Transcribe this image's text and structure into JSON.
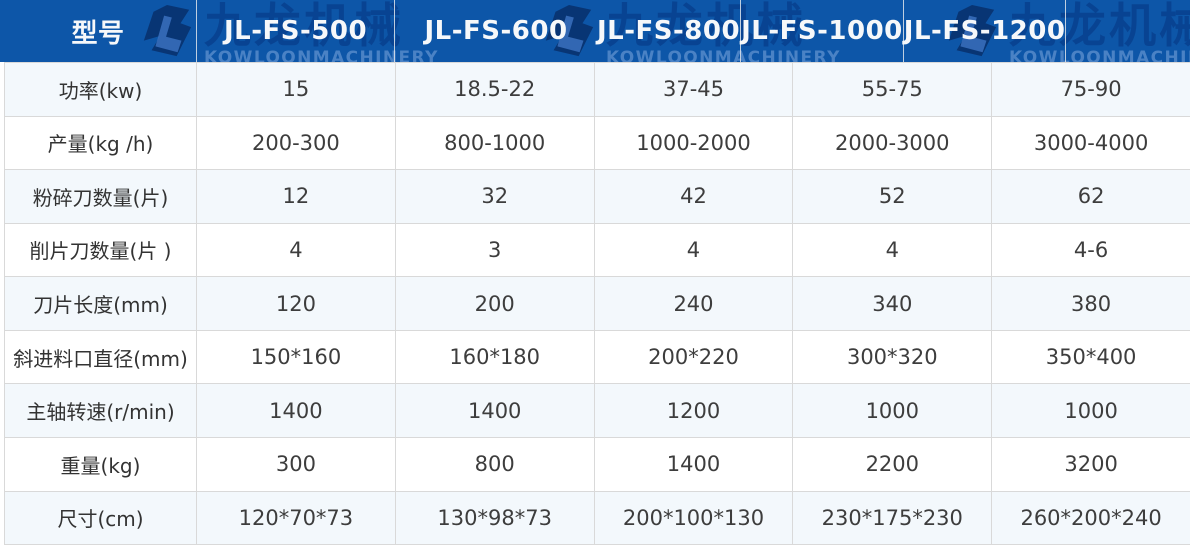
{
  "chart_data": {
    "type": "table",
    "columns": [
      "型号",
      "JL-FS-500",
      "JL-FS-600",
      "JL-FS-800",
      "JL-FS-1000",
      "JL-FS-1200"
    ],
    "rows": [
      {
        "label": "功率(kw)",
        "values": [
          "15",
          "18.5-22",
          "37-45",
          "55-75",
          "75-90"
        ]
      },
      {
        "label": "产量(kg /h)",
        "values": [
          "200-300",
          "800-1000",
          "1000-2000",
          "2000-3000",
          "3000-4000"
        ]
      },
      {
        "label": "粉碎刀数量(片)",
        "values": [
          "12",
          "32",
          "42",
          "52",
          "62"
        ]
      },
      {
        "label": "削片刀数量(片 )",
        "values": [
          "4",
          "3",
          "4",
          "4",
          "4-6"
        ]
      },
      {
        "label": "刀片长度(mm)",
        "values": [
          "120",
          "200",
          "240",
          "340",
          "380"
        ]
      },
      {
        "label": "斜进料口直径(mm)",
        "values": [
          "150*160",
          "160*180",
          "200*220",
          "300*320",
          "350*400"
        ]
      },
      {
        "label": "主轴转速(r/min)",
        "values": [
          "1400",
          "1400",
          "1200",
          "1000",
          "1000"
        ]
      },
      {
        "label": "重量(kg)",
        "values": [
          "300",
          "800",
          "1400",
          "2200",
          "3200"
        ]
      },
      {
        "label": "尺寸(cm)",
        "values": [
          "120*70*73",
          "130*98*73",
          "200*100*130",
          "230*175*230",
          "260*200*240"
        ]
      }
    ],
    "layout_hints": {
      "header_row": true,
      "striped": "odd-rows-light-blue",
      "grid": true
    }
  },
  "watermark": {
    "cn": "九龙机械",
    "en": "KOWLOONMACHINERY",
    "logo_icon": "jl-monogram-icon"
  },
  "colors": {
    "header_bg": "#0d56a8",
    "header_text": "#f6f8fa",
    "row_alt_bg": "#f3f8fc",
    "row_bg": "#ffffff",
    "grid_border": "#d9d9d9",
    "cell_text": "#3d3d3d",
    "watermark_cn": "#063884",
    "watermark_en": "#7da8dc"
  }
}
